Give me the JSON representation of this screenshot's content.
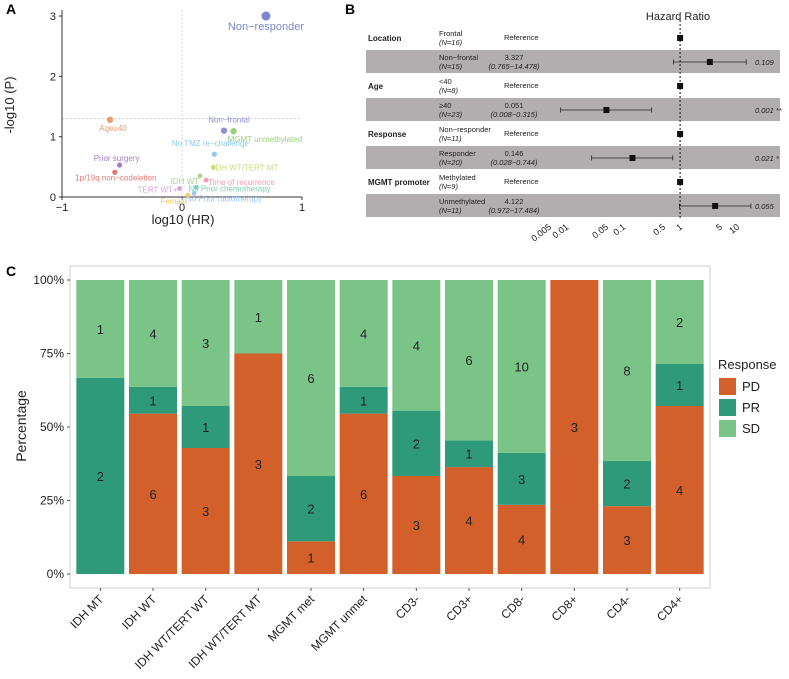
{
  "panels": {
    "a": "A",
    "b": "B",
    "c": "C"
  },
  "chart_data": [
    {
      "type": "scatter",
      "xlabel": "log10 (HR)",
      "ylabel": "-log10 (P)",
      "xlim": [
        -1,
        1
      ],
      "ylim": [
        0,
        3.1
      ],
      "x_ticks": [
        "−1",
        "0",
        "1"
      ],
      "y_ticks": [
        "0",
        "1",
        "2",
        "3"
      ],
      "points": [
        {
          "label": "Non−responder",
          "x": 0.7,
          "y": 3.0,
          "color": "#7d86cc",
          "size": 4.5
        },
        {
          "label": "Age≥40",
          "x": -0.6,
          "y": 1.28,
          "color": "#ef9a6b",
          "size": 3.2
        },
        {
          "label": "Non−frontal",
          "x": 0.35,
          "y": 1.1,
          "color": "#8a93d6",
          "size": 3.2
        },
        {
          "label": "MGMT unmethylated",
          "x": 0.43,
          "y": 1.09,
          "color": "#9bd07a",
          "size": 3.2
        },
        {
          "label": "No TMZ re−challenge",
          "x": 0.27,
          "y": 0.71,
          "color": "#8ec9ee",
          "size": 2.6
        },
        {
          "label": "Prior surgery",
          "x": -0.52,
          "y": 0.53,
          "color": "#a57dc1",
          "size": 2.6
        },
        {
          "label": "IDH WT/TERT MT",
          "x": 0.26,
          "y": 0.49,
          "color": "#c5df7a",
          "size": 2.4
        },
        {
          "label": "1p/19q non−codeletion",
          "x": -0.56,
          "y": 0.41,
          "color": "#e07a73",
          "size": 2.6
        },
        {
          "label": "IDH WT",
          "x": 0.15,
          "y": 0.35,
          "color": "#a8d68b",
          "size": 2.4
        },
        {
          "label": "Time of recurrence",
          "x": 0.2,
          "y": 0.28,
          "color": "#f49bb0",
          "size": 2.4
        },
        {
          "label": "No Prior chemotherapy",
          "x": 0.12,
          "y": 0.16,
          "color": "#7fcfb8",
          "size": 2.4
        },
        {
          "label": "TERT WT+",
          "x": -0.02,
          "y": 0.14,
          "color": "#d3a2e0",
          "size": 2.4
        },
        {
          "label": "No Prior radiotherapy",
          "x": 0.1,
          "y": 0.06,
          "color": "#9fc8ee",
          "size": 2.4
        },
        {
          "label": "Female",
          "x": 0.05,
          "y": 0.03,
          "color": "#f7c96a",
          "size": 2.4
        }
      ]
    },
    {
      "type": "table",
      "title": "Hazard Ratio",
      "x_scale": "log",
      "x_ticks": [
        "0.005",
        "0.01",
        "0.05",
        "0.1",
        "0.5",
        "1",
        "5",
        "10"
      ],
      "rows": [
        {
          "variable": "Location",
          "level": "Frontal",
          "n": "(N=16)",
          "estimate": "Reference",
          "ci": "",
          "p": "",
          "shaded": false,
          "hr": 1,
          "lo": null,
          "hi": null
        },
        {
          "variable": "",
          "level": "Non−frontal",
          "n": "(N=15)",
          "estimate": "3.327",
          "ci": "(0.765−14.478)",
          "p": "0.109",
          "shaded": true,
          "hr": 3.327,
          "lo": 0.765,
          "hi": 14.478
        },
        {
          "variable": "Age",
          "level": "<40",
          "n": "(N=8)",
          "estimate": "Reference",
          "ci": "",
          "p": "",
          "shaded": false,
          "hr": 1,
          "lo": null,
          "hi": null
        },
        {
          "variable": "",
          "level": "≥40",
          "n": "(N=23)",
          "estimate": "0.051",
          "ci": "(0.008−0.315)",
          "p": "0.001 **",
          "shaded": true,
          "hr": 0.051,
          "lo": 0.008,
          "hi": 0.315
        },
        {
          "variable": "Response",
          "level": "Non−responder",
          "n": "(N=11)",
          "estimate": "Reference",
          "ci": "",
          "p": "",
          "shaded": false,
          "hr": 1,
          "lo": null,
          "hi": null
        },
        {
          "variable": "",
          "level": "Responder",
          "n": "(N=20)",
          "estimate": "0.146",
          "ci": "(0.028−0.744)",
          "p": "0.021 *",
          "shaded": true,
          "hr": 0.146,
          "lo": 0.028,
          "hi": 0.744
        },
        {
          "variable": "MGMT promoter",
          "level": "Methylated",
          "n": "(N=9)",
          "estimate": "Reference",
          "ci": "",
          "p": "",
          "shaded": false,
          "hr": 1,
          "lo": null,
          "hi": null
        },
        {
          "variable": "",
          "level": "Unmethylated",
          "n": "(N=11)",
          "estimate": "4.122",
          "ci": "(0.972−17.484)",
          "p": "0.055",
          "shaded": true,
          "hr": 4.122,
          "lo": 0.972,
          "hi": 17.484
        }
      ]
    },
    {
      "type": "bar",
      "stacked": "percent",
      "ylabel": "Percentage",
      "y_ticks": [
        "0%",
        "25%",
        "50%",
        "75%",
        "100%"
      ],
      "legend": {
        "title": "Response",
        "placement": "right"
      },
      "categories": [
        "IDH MT",
        "IDH WT",
        "IDH WT/TERT WT",
        "IDH WT/TERT MT",
        "MGMT met",
        "MGMT unmet",
        "CD3-",
        "CD3+",
        "CD8-",
        "CD8+",
        "CD4-",
        "CD4+"
      ],
      "series": [
        {
          "name": "PD",
          "color": "#d35f2b",
          "values": [
            0,
            6,
            3,
            3,
            1,
            6,
            3,
            4,
            4,
            3,
            3,
            4
          ]
        },
        {
          "name": "PR",
          "color": "#2f9a7a",
          "values": [
            2,
            1,
            1,
            0,
            2,
            1,
            2,
            1,
            3,
            0,
            2,
            1
          ]
        },
        {
          "name": "SD",
          "color": "#7ac487",
          "values": [
            1,
            4,
            3,
            1,
            6,
            4,
            4,
            6,
            10,
            0,
            8,
            2
          ]
        }
      ]
    }
  ]
}
